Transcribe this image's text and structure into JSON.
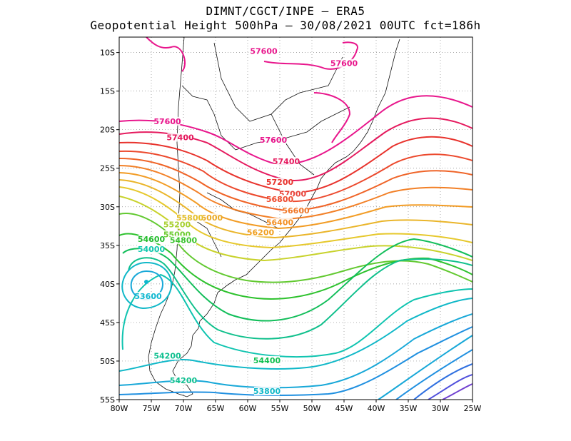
{
  "header": {
    "line1": "DIMNT/CGCT/INPE –  ERA5",
    "line2": "Geopotential Height 500hPa –  30/08/2021 00UTC fct=186h"
  },
  "map": {
    "type": "contour",
    "lon_range": [
      -80,
      -25
    ],
    "lat_range": [
      -55,
      -8
    ],
    "lon_ticks": [
      "80W",
      "75W",
      "70W",
      "65W",
      "60W",
      "55W",
      "50W",
      "45W",
      "40W",
      "35W",
      "30W",
      "25W"
    ],
    "lat_ticks": [
      "10S",
      "15S",
      "20S",
      "25S",
      "30S",
      "35S",
      "40S",
      "45S",
      "50S",
      "55S"
    ],
    "grid": "dotted",
    "contour_labels": [
      {
        "text": "57600",
        "color": "#e8168c",
        "lon": -57.5,
        "lat": -9.8
      },
      {
        "text": "57600",
        "color": "#e8168c",
        "lon": -45,
        "lat": -11.4
      },
      {
        "text": "57600",
        "color": "#e8168c",
        "lon": -72.5,
        "lat": -18.9
      },
      {
        "text": "57600",
        "color": "#e8168c",
        "lon": -56,
        "lat": -21.3
      },
      {
        "text": "57400",
        "color": "#e51a5e",
        "lon": -70.5,
        "lat": -21.0
      },
      {
        "text": "57400",
        "color": "#e51a5e",
        "lon": -54,
        "lat": -24.1
      },
      {
        "text": "57200",
        "color": "#e8332d",
        "lon": -55,
        "lat": -26.8
      },
      {
        "text": "57000",
        "color": "#e8443a",
        "lon": -53,
        "lat": -28.3
      },
      {
        "text": "56800",
        "color": "#ee4a2e",
        "lon": -55,
        "lat": -29.0
      },
      {
        "text": "56600",
        "color": "#f07828",
        "lon": -52.5,
        "lat": -30.5
      },
      {
        "text": "56400",
        "color": "#f39025",
        "lon": -55,
        "lat": -32.0
      },
      {
        "text": "56200",
        "color": "#f0a020",
        "lon": -58,
        "lat": -33.3
      },
      {
        "text": "56000",
        "color": "#eaa824",
        "lon": -66,
        "lat": -31.4
      },
      {
        "text": "55800",
        "color": "#e6c02a",
        "lon": -69,
        "lat": -31.4
      },
      {
        "text": "55200",
        "color": "#a8d030",
        "lon": -71,
        "lat": -32.3
      },
      {
        "text": "55000",
        "color": "#6ccc30",
        "lon": -71,
        "lat": -33.6
      },
      {
        "text": "54800",
        "color": "#3ac32e",
        "lon": -70,
        "lat": -34.3
      },
      {
        "text": "54600",
        "color": "#22bc2c",
        "lon": -75,
        "lat": -34.2
      },
      {
        "text": "54400",
        "color": "#10c050",
        "lon": -57,
        "lat": -49.9
      },
      {
        "text": "54200",
        "color": "#10c090",
        "lon": -72.5,
        "lat": -49.3
      },
      {
        "text": "54200",
        "color": "#10c090",
        "lon": -70,
        "lat": -52.5
      },
      {
        "text": "54000",
        "color": "#10c8b0",
        "lon": -75,
        "lat": -35.5
      },
      {
        "text": "53800",
        "color": "#10b8c8",
        "lon": -57,
        "lat": -53.9
      },
      {
        "text": "53600",
        "color": "#10b8d0",
        "lon": -75.5,
        "lat": -41.6
      }
    ],
    "contour_colors": [
      "#e8168c",
      "#e51a5e",
      "#e8332d",
      "#ec4a2e",
      "#ef6428",
      "#f28027",
      "#f29c25",
      "#eab52a",
      "#e6c82c",
      "#c8d22c",
      "#9ad02e",
      "#62c930",
      "#2ec22e",
      "#12be5a",
      "#10c08c",
      "#10c4b0",
      "#10b8c8",
      "#18a8d8",
      "#2090e0",
      "#3070e0",
      "#5050dc",
      "#7040d0",
      "#8c28c8"
    ]
  }
}
